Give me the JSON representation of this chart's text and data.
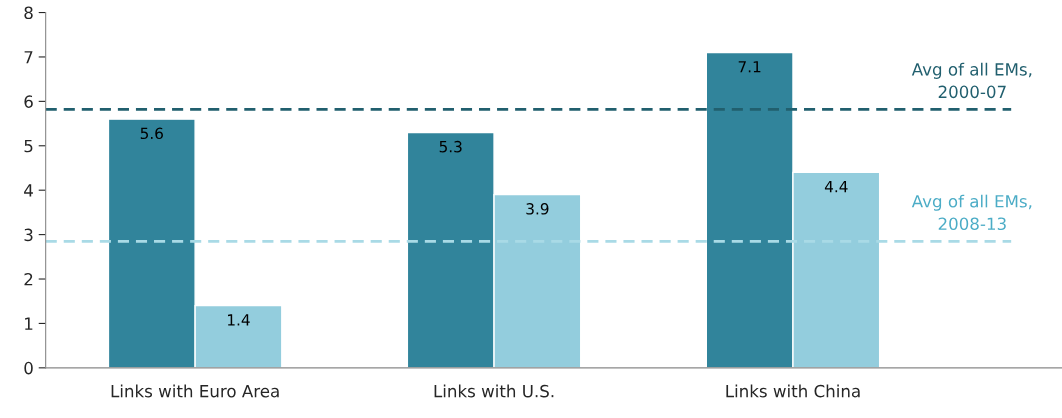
{
  "chart_data": {
    "type": "bar",
    "categories": [
      "Links with Euro Area",
      "Links with U.S.",
      "Links with China"
    ],
    "series": [
      {
        "color": "#31849b",
        "values": [
          5.6,
          5.3,
          7.1
        ]
      },
      {
        "color": "#93cddd",
        "values": [
          1.4,
          3.9,
          4.4
        ]
      }
    ],
    "data_labels": true,
    "ylim": [
      0,
      8
    ],
    "yticks": [
      0,
      1,
      2,
      3,
      4,
      5,
      6,
      7,
      8
    ],
    "ref_lines": [
      {
        "axis": "y",
        "value": 5.82,
        "label": "Avg of all EMs,\n2000-07",
        "color": "#215f6e",
        "line_style": "dashed"
      },
      {
        "axis": "y",
        "value": 2.85,
        "label": "Avg of all EMs,\n2008-13",
        "color": "#a9dae6",
        "line_style": "dashed"
      }
    ],
    "grid": false,
    "legend": false
  }
}
